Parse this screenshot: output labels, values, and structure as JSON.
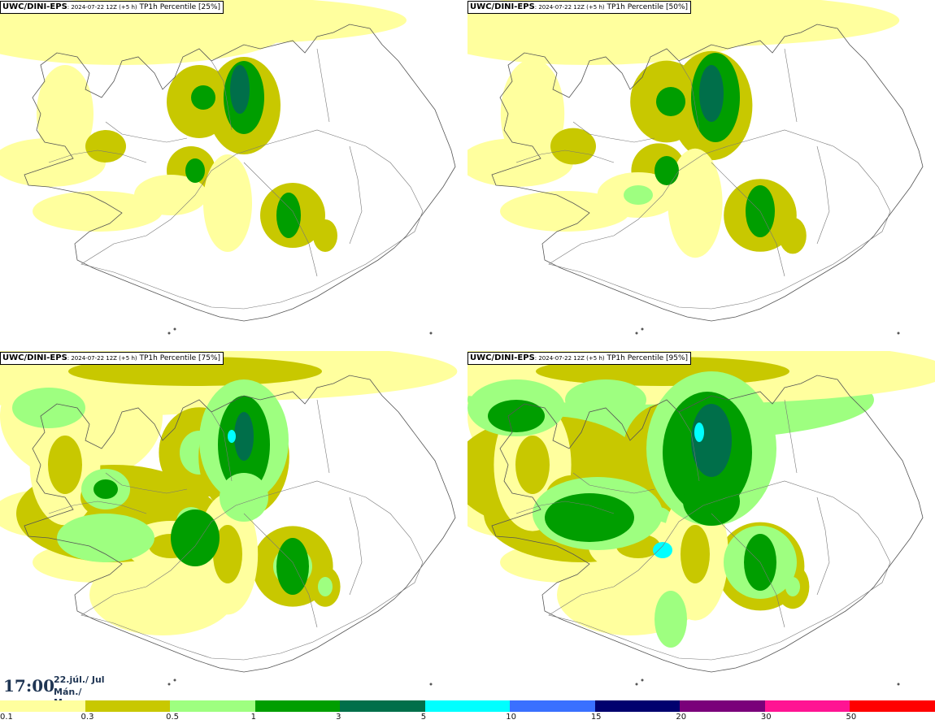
{
  "panels": [
    {
      "model": "UWC/DINI-EPS",
      "run": ": 2024-07-22 12Z (+5 h)",
      "variable": "TP1h Percentile [25%]"
    },
    {
      "model": "UWC/DINI-EPS",
      "run": ": 2024-07-22 12Z (+5 h)",
      "variable": "TP1h Percentile [50%]"
    },
    {
      "model": "UWC/DINI-EPS",
      "run": ": 2024-07-22 12Z (+5 h)",
      "variable": "TP1h Percentile [75%]"
    },
    {
      "model": "UWC/DINI-EPS",
      "run": ": 2024-07-22 12Z (+5 h)",
      "variable": "TP1h Percentile [95%]"
    }
  ],
  "valid_time": {
    "hour": "17:00",
    "date_line1": "22.júl./ Jul",
    "date_line2": "Mán./ Mon"
  },
  "legend": {
    "thresholds": [
      "0.1",
      "0.3",
      "0.5",
      "1",
      "3",
      "5",
      "10",
      "15",
      "20",
      "30",
      "50"
    ],
    "colors": [
      "#ffff9e",
      "#c8c800",
      "#9eff80",
      "#009e00",
      "#006f4a",
      "#00ffff",
      "#3a70ff",
      "#00006e",
      "#7a007a",
      "#ff1493",
      "#ff0000"
    ]
  }
}
